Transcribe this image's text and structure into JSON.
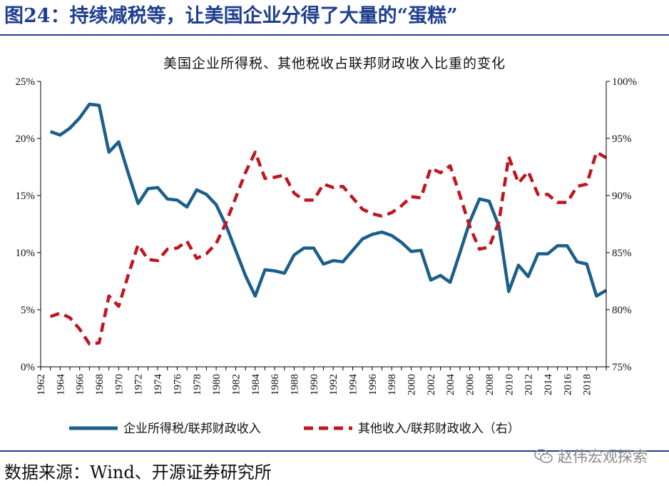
{
  "figure": {
    "label": "图24：持续减税等，让美国企业分得了大量的“蛋糕”"
  },
  "source_text": "数据来源：Wind、开源证券研究所",
  "watermark_text": "赵伟宏观探索",
  "colors": {
    "series_corp": "#1c5f8a",
    "series_other": "#c0161f",
    "header_blue": "#1f3f8f"
  },
  "chart_data": {
    "type": "line",
    "title": "美国企业所得税、其他税收占联邦财政收入比重的变化",
    "x": [
      1963,
      1964,
      1965,
      1966,
      1967,
      1968,
      1969,
      1970,
      1971,
      1972,
      1973,
      1974,
      1975,
      1976,
      1977,
      1978,
      1979,
      1980,
      1981,
      1982,
      1983,
      1984,
      1985,
      1986,
      1987,
      1988,
      1989,
      1990,
      1991,
      1992,
      1993,
      1994,
      1995,
      1996,
      1997,
      1998,
      1999,
      2000,
      2001,
      2002,
      2003,
      2004,
      2005,
      2006,
      2007,
      2008,
      2009,
      2010,
      2011,
      2012,
      2013,
      2014,
      2015,
      2016,
      2017,
      2018,
      2019,
      2020
    ],
    "x_tick_labels": [
      "1962",
      "1964",
      "1966",
      "1968",
      "1970",
      "1972",
      "1974",
      "1976",
      "1978",
      "1980",
      "1982",
      "1984",
      "1986",
      "1988",
      "1990",
      "1992",
      "1994",
      "1996",
      "1998",
      "2000",
      "2002",
      "2004",
      "2006",
      "2008",
      "2010",
      "2012",
      "2014",
      "2016",
      "2018"
    ],
    "xlim": [
      1962,
      2020
    ],
    "y_left": {
      "ticks": [
        "0%",
        "5%",
        "10%",
        "15%",
        "20%",
        "25%"
      ],
      "range": [
        0,
        25
      ]
    },
    "y_right": {
      "ticks": [
        "75%",
        "80%",
        "85%",
        "90%",
        "95%",
        "100%"
      ],
      "range": [
        75,
        100
      ]
    },
    "series": [
      {
        "name": "企业所得税/联邦财政收入",
        "axis": "left",
        "style": "solid",
        "values": [
          20.6,
          20.3,
          20.9,
          21.8,
          23.0,
          22.9,
          18.8,
          19.7,
          16.9,
          14.3,
          15.6,
          15.7,
          14.7,
          14.6,
          14.0,
          15.5,
          15.1,
          14.2,
          12.4,
          10.2,
          8.0,
          6.2,
          8.5,
          8.4,
          8.2,
          9.8,
          10.4,
          10.4,
          9.0,
          9.3,
          9.2,
          10.2,
          11.2,
          11.6,
          11.8,
          11.5,
          10.9,
          10.1,
          10.2,
          7.6,
          8.0,
          7.4,
          10.0,
          12.7,
          14.7,
          14.5,
          12.3,
          6.6,
          8.9,
          7.9,
          9.9,
          9.9,
          10.6,
          10.6,
          9.2,
          9.0,
          6.2,
          6.7
        ]
      },
      {
        "name": "其他收入/联邦财政收入（右）",
        "axis": "right",
        "style": "dashed",
        "values": [
          79.4,
          79.7,
          79.3,
          78.3,
          77.0,
          77.1,
          81.2,
          80.3,
          83.1,
          85.7,
          84.4,
          84.3,
          85.3,
          85.4,
          86.0,
          84.5,
          84.9,
          85.8,
          87.6,
          89.8,
          92.0,
          93.8,
          91.5,
          91.6,
          91.8,
          90.2,
          89.6,
          89.6,
          91.0,
          90.7,
          90.8,
          89.8,
          88.8,
          88.4,
          88.2,
          88.5,
          89.1,
          89.9,
          89.8,
          92.4,
          92.0,
          92.6,
          90.0,
          87.3,
          85.3,
          85.5,
          87.7,
          93.4,
          91.1,
          92.1,
          90.1,
          90.1,
          89.4,
          89.4,
          90.8,
          91.0,
          93.8,
          93.3
        ]
      }
    ]
  }
}
